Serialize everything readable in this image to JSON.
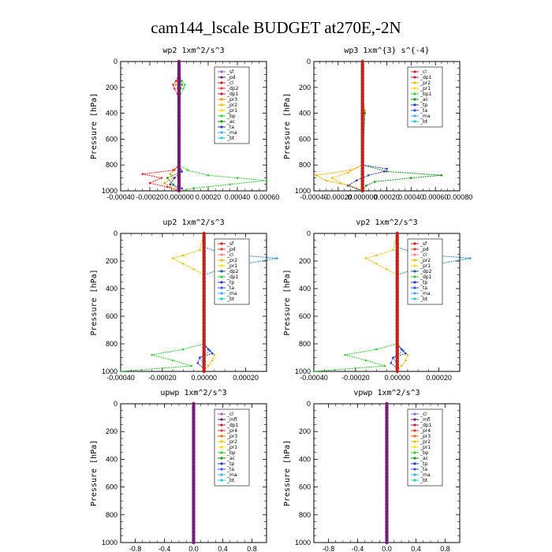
{
  "figure": {
    "title": "cam144_lscale  BUDGET at270E,-2N"
  },
  "chart_data": [
    {
      "type": "line",
      "id": "wp2",
      "title": "wp2   1xm^2/s^3",
      "ylabel": "Pressure [hPa]",
      "xlabel": "",
      "xlim": [
        -0.0004,
        0.0006
      ],
      "ylim": [
        1000,
        0
      ],
      "xticks": [
        -0.0004,
        -0.0002,
        0.0,
        0.0002,
        0.0004,
        0.0006
      ],
      "xtick_labels": [
        "-0.00040",
        "-0.00020",
        "0.000000",
        "0.00020",
        "0.00040",
        "0.00060"
      ],
      "yticks": [
        0,
        200,
        400,
        600,
        800,
        1000
      ],
      "ytick_labels": [
        "0",
        "200",
        "400",
        "600",
        "800",
        "1000"
      ],
      "legend": [
        "_sf",
        "_pd",
        "_cl",
        "_dp2",
        "_dp1",
        "_pr3",
        "_pr2",
        "_pr1",
        "_bp",
        "_ac",
        "_ta",
        "_ma",
        "_bt"
      ],
      "legend_colors": [
        "#9a5fd0",
        "#7a1a7a",
        "#cc1f1f",
        "#e23b2b",
        "#b51f3c",
        "#ff8c00",
        "#e8c000",
        "#ffdf00",
        "#33cc33",
        "#119911",
        "#3333cc",
        "#44aaff",
        "#22cccc"
      ],
      "series": [
        {
          "name": "_pr2",
          "color": "#ff9900",
          "p": [
            0,
            100,
            150,
            180,
            210,
            250,
            300,
            400,
            600,
            800,
            840,
            870,
            900,
            940,
            970,
            1000
          ],
          "v": [
            0,
            0,
            -1e-05,
            -2e-05,
            -1e-05,
            0,
            0,
            0,
            0,
            0,
            -3e-05,
            -6e-05,
            -4e-05,
            -0.0001,
            -6e-05,
            0
          ]
        },
        {
          "name": "_dp1",
          "color": "#e02020",
          "p": [
            0,
            100,
            150,
            180,
            210,
            250,
            300,
            400,
            600,
            800,
            840,
            870,
            900,
            940,
            970,
            1000
          ],
          "v": [
            0,
            0,
            -2e-05,
            -4e-05,
            -3e-05,
            -1e-05,
            0,
            0,
            0,
            0,
            -4e-05,
            -0.00025,
            -0.00012,
            -0.0002,
            -8e-05,
            0
          ]
        },
        {
          "name": "_ac",
          "color": "#33cc33",
          "p": [
            0,
            100,
            150,
            180,
            210,
            250,
            300,
            400,
            600,
            800,
            840,
            880,
            900,
            920,
            950,
            980,
            1000
          ],
          "v": [
            0,
            0,
            2e-05,
            4e-05,
            3e-05,
            1e-05,
            0,
            0,
            0,
            0,
            6e-05,
            0.0002,
            0.0004,
            0.0006,
            0.00035,
            0.0001,
            0
          ]
        },
        {
          "name": "_bp",
          "color": "#119911",
          "p": [
            0,
            100,
            150,
            180,
            210,
            250,
            300,
            400,
            600,
            800,
            850,
            900,
            950,
            1000
          ],
          "v": [
            0,
            0,
            1e-05,
            2e-05,
            1e-05,
            0,
            0,
            0,
            0,
            0,
            2e-05,
            -8e-05,
            -4e-05,
            0
          ]
        },
        {
          "name": "_ta",
          "color": "#3333cc",
          "p": [
            0,
            100,
            400,
            600,
            800,
            850,
            900,
            950,
            980,
            1000
          ],
          "v": [
            0,
            0,
            0,
            0,
            0,
            2e-05,
            -3e-05,
            -6e-05,
            2e-05,
            0
          ]
        },
        {
          "name": "_pd",
          "color": "#7a1a7a",
          "p": [
            0,
            200,
            400,
            600,
            800,
            1000
          ],
          "v": [
            0,
            0,
            0,
            0,
            0,
            0
          ]
        }
      ]
    },
    {
      "type": "line",
      "id": "wp3",
      "title": "wp3   1xm^{3} s^{-4}",
      "ylabel": "Pressure [hPa]",
      "xlabel": "",
      "xlim": [
        -0.0004,
        0.0008
      ],
      "ylim": [
        1000,
        0
      ],
      "xticks": [
        -0.0004,
        -0.0002,
        0.0,
        0.0002,
        0.0004,
        0.0006,
        0.0008
      ],
      "xtick_labels": [
        "-0.00040",
        "-0.00020",
        "0.000000",
        "0.00020",
        "0.00040",
        "0.00060",
        "0.00080"
      ],
      "yticks": [
        0,
        200,
        400,
        600,
        800,
        1000
      ],
      "ytick_labels": [
        "0",
        "200",
        "400",
        "600",
        "800",
        "1000"
      ],
      "legend": [
        "_cl",
        "_dp1",
        "_pr2",
        "_pr1",
        "_bp1",
        "_ac",
        "_tp",
        "_ta",
        "_ma",
        "_bt"
      ],
      "legend_colors": [
        "#cc1f1f",
        "#b51f3c",
        "#e8c000",
        "#ffdf00",
        "#33cc33",
        "#119911",
        "#3333cc",
        "#3355ff",
        "#44aaff",
        "#22cccc"
      ],
      "series": [
        {
          "name": "_pr2",
          "color": "#ffa500",
          "p": [
            0,
            100,
            300,
            400,
            800,
            840,
            880,
            920,
            960,
            1000
          ],
          "v": [
            0,
            0,
            0,
            0,
            0,
            -0.0001,
            -0.00038,
            -0.0003,
            -0.0001,
            0
          ]
        },
        {
          "name": "_pr1",
          "color": "#e8c000",
          "p": [
            0,
            300,
            340,
            380,
            420,
            800,
            860,
            900,
            940,
            980,
            1000
          ],
          "v": [
            0,
            0,
            1e-05,
            2e-05,
            1e-05,
            0,
            -0.00012,
            -0.00025,
            -0.00018,
            -5e-05,
            0
          ]
        },
        {
          "name": "_ac",
          "color": "#119911",
          "p": [
            0,
            300,
            400,
            800,
            850,
            880,
            900,
            930,
            960,
            1000
          ],
          "v": [
            0,
            0,
            2e-05,
            0,
            0.0002,
            0.00065,
            0.0004,
            0.0001,
            3e-05,
            0
          ]
        },
        {
          "name": "_tp",
          "color": "#3333cc",
          "p": [
            0,
            400,
            800,
            830,
            850,
            880,
            920,
            960,
            1000
          ],
          "v": [
            0,
            0,
            0,
            0.0002,
            0.00018,
            5e-05,
            -5e-05,
            -0.00012,
            0
          ]
        },
        {
          "name": "_cl",
          "color": "#cc1f1f",
          "p": [
            0,
            200,
            400,
            600,
            800,
            1000
          ],
          "v": [
            0,
            0,
            0,
            0,
            0,
            0
          ]
        }
      ]
    },
    {
      "type": "line",
      "id": "up2",
      "title": "up2   1xm^2/s^3",
      "ylabel": "Pressure [hPa]",
      "xlabel": "",
      "xlim": [
        -0.0004,
        0.0003
      ],
      "ylim": [
        1000,
        0
      ],
      "xticks": [
        -0.0004,
        -0.0002,
        0.0,
        0.0002
      ],
      "xtick_labels": [
        "-0.00040",
        "-0.00020",
        "0.00000",
        "0.00020"
      ],
      "yticks": [
        0,
        200,
        400,
        600,
        800,
        1000
      ],
      "ytick_labels": [
        "0",
        "200",
        "400",
        "600",
        "800",
        "1000"
      ],
      "legend": [
        "_sf",
        "_pd",
        "_cl",
        "_pr2",
        "_pr1",
        "_dp2",
        "_dp1",
        "_tp",
        "_ta",
        "_ma",
        "_bt"
      ],
      "legend_colors": [
        "#cc1f1f",
        "#e23b2b",
        "#ff7f7f",
        "#e8c000",
        "#ffdf00",
        "#2255aa",
        "#33cc33",
        "#3333cc",
        "#3355ff",
        "#44aaff",
        "#22cccc"
      ],
      "series": [
        {
          "name": "_pr1",
          "color": "#e8c000",
          "p": [
            0,
            120,
            160,
            180,
            220,
            260,
            300,
            800,
            850,
            880,
            920,
            960,
            1000
          ],
          "v": [
            0,
            -2e-05,
            -0.0001,
            -0.00015,
            -0.0001,
            -5e-05,
            0,
            0,
            3e-05,
            5e-05,
            4e-05,
            2e-05,
            0
          ]
        },
        {
          "name": "_dp2",
          "color": "#2288cc",
          "p": [
            0,
            100,
            150,
            180,
            220,
            260,
            300,
            800,
            850,
            900,
            950,
            1000
          ],
          "v": [
            0,
            0,
            0.0001,
            0.00035,
            0.0002,
            8e-05,
            0,
            0,
            3e-05,
            -2e-05,
            0,
            0
          ]
        },
        {
          "name": "_dp1",
          "color": "#33cc33",
          "p": [
            0,
            300,
            800,
            840,
            880,
            920,
            960,
            1000
          ],
          "v": [
            0,
            0,
            0,
            -0.0001,
            -0.00025,
            -0.00015,
            -6e-05,
            -0.0004
          ]
        },
        {
          "name": "_tp",
          "color": "#3333cc",
          "p": [
            0,
            400,
            800,
            840,
            870,
            900,
            940,
            980,
            1000
          ],
          "v": [
            0,
            0,
            0,
            2e-05,
            4e-05,
            -2e-05,
            -3e-05,
            0,
            0
          ]
        },
        {
          "name": "_pd",
          "color": "#cc1f1f",
          "p": [
            0,
            200,
            400,
            600,
            800,
            1000
          ],
          "v": [
            0,
            0,
            0,
            0,
            0,
            0
          ]
        }
      ]
    },
    {
      "type": "line",
      "id": "vp2",
      "title": "vp2   1xm^2/s^3",
      "ylabel": "Pressure [hPa]",
      "xlabel": "",
      "xlim": [
        -0.0004,
        0.0003
      ],
      "ylim": [
        1000,
        0
      ],
      "xticks": [
        -0.0004,
        -0.0002,
        0.0,
        0.0002
      ],
      "xtick_labels": [
        "-0.00040",
        "-0.00020",
        "0.00000",
        "0.00020"
      ],
      "yticks": [
        0,
        200,
        400,
        600,
        800,
        1000
      ],
      "ytick_labels": [
        "0",
        "200",
        "400",
        "600",
        "800",
        "1000"
      ],
      "legend": [
        "_sf",
        "_pd",
        "_cl",
        "_pr2",
        "_pr1",
        "_dp2",
        "_dp1",
        "_tp",
        "_ta",
        "_ma",
        "_bt"
      ],
      "legend_colors": [
        "#cc1f1f",
        "#e23b2b",
        "#ff7f7f",
        "#e8c000",
        "#ffdf00",
        "#2255aa",
        "#33cc33",
        "#3333cc",
        "#3355ff",
        "#44aaff",
        "#22cccc"
      ],
      "series": [
        {
          "name": "_pr1",
          "color": "#e8c000",
          "p": [
            0,
            120,
            160,
            180,
            220,
            260,
            300,
            800,
            850,
            880,
            920,
            960,
            1000
          ],
          "v": [
            0,
            -2e-05,
            -0.0001,
            -0.00015,
            -0.0001,
            -5e-05,
            0,
            0,
            3e-05,
            5e-05,
            4e-05,
            2e-05,
            0
          ]
        },
        {
          "name": "_dp2",
          "color": "#2288cc",
          "p": [
            0,
            100,
            150,
            180,
            220,
            260,
            300,
            800,
            850,
            900,
            950,
            1000
          ],
          "v": [
            0,
            0,
            0.0001,
            0.00035,
            0.0002,
            8e-05,
            0,
            0,
            3e-05,
            -2e-05,
            0,
            0
          ]
        },
        {
          "name": "_dp1",
          "color": "#33cc33",
          "p": [
            0,
            300,
            800,
            840,
            880,
            920,
            960,
            1000
          ],
          "v": [
            0,
            0,
            0,
            -0.0001,
            -0.00025,
            -0.00015,
            -6e-05,
            -0.0004
          ]
        },
        {
          "name": "_tp",
          "color": "#3333cc",
          "p": [
            0,
            400,
            800,
            840,
            870,
            900,
            940,
            980,
            1000
          ],
          "v": [
            0,
            0,
            0,
            2e-05,
            4e-05,
            -2e-05,
            -3e-05,
            0,
            0
          ]
        },
        {
          "name": "_pd",
          "color": "#cc1f1f",
          "p": [
            0,
            200,
            400,
            600,
            800,
            1000
          ],
          "v": [
            0,
            0,
            0,
            0,
            0,
            0
          ]
        }
      ]
    },
    {
      "type": "line",
      "id": "upwp",
      "title": "upwp   1xm^2/s^3",
      "ylabel": "Pressure [hPa]",
      "xlabel": "",
      "xlim": [
        -1.0,
        1.0
      ],
      "ylim": [
        1000,
        0
      ],
      "xticks": [
        -0.8,
        -0.4,
        0.0,
        0.4,
        0.8
      ],
      "xtick_labels": [
        "-0.8",
        "-0.4",
        "0.0",
        "0.4",
        "0.8"
      ],
      "yticks": [
        0,
        200,
        400,
        600,
        800,
        1000
      ],
      "ytick_labels": [
        "0",
        "200",
        "400",
        "600",
        "800",
        "1000"
      ],
      "legend": [
        "_cl",
        "_mfl",
        "_dp1",
        "_pr4",
        "_pr3",
        "_pr2",
        "_pr1",
        "_bp",
        "_ac",
        "_tp",
        "_ta",
        "_ma",
        "_bt"
      ],
      "legend_colors": [
        "#9a5fd0",
        "#7a1a7a",
        "#b51f3c",
        "#e23b2b",
        "#ff6600",
        "#e8c000",
        "#ffdf00",
        "#33cc33",
        "#119911",
        "#3333cc",
        "#3355ff",
        "#44aaff",
        "#22cccc"
      ],
      "series": [
        {
          "name": "_mfl",
          "color": "#7a1a7a",
          "p": [
            0,
            200,
            400,
            600,
            800,
            1000
          ],
          "v": [
            0,
            0,
            0,
            0,
            0,
            0
          ]
        }
      ]
    },
    {
      "type": "line",
      "id": "vpwp",
      "title": "vpwp   1xm^2/s^3",
      "ylabel": "Pressure [hPa]",
      "xlabel": "",
      "xlim": [
        -1.0,
        1.0
      ],
      "ylim": [
        1000,
        0
      ],
      "xticks": [
        -0.8,
        -0.4,
        0.0,
        0.4,
        0.8
      ],
      "xtick_labels": [
        "-0.8",
        "-0.4",
        "0.0",
        "0.4",
        "0.8"
      ],
      "yticks": [
        0,
        200,
        400,
        600,
        800,
        1000
      ],
      "ytick_labels": [
        "0",
        "200",
        "400",
        "600",
        "800",
        "1000"
      ],
      "legend": [
        "_cl",
        "_mfl",
        "_dp1",
        "_pr4",
        "_pr3",
        "_pr2",
        "_pr1",
        "_bp",
        "_ac",
        "_tp",
        "_ta",
        "_ma",
        "_bt"
      ],
      "legend_colors": [
        "#9a5fd0",
        "#7a1a7a",
        "#b51f3c",
        "#e23b2b",
        "#ff6600",
        "#e8c000",
        "#ffdf00",
        "#33cc33",
        "#119911",
        "#3333cc",
        "#3355ff",
        "#44aaff",
        "#22cccc"
      ],
      "series": [
        {
          "name": "_mfl",
          "color": "#7a1a7a",
          "p": [
            0,
            200,
            400,
            600,
            800,
            1000
          ],
          "v": [
            0,
            0,
            0,
            0,
            0,
            0
          ]
        }
      ]
    }
  ]
}
